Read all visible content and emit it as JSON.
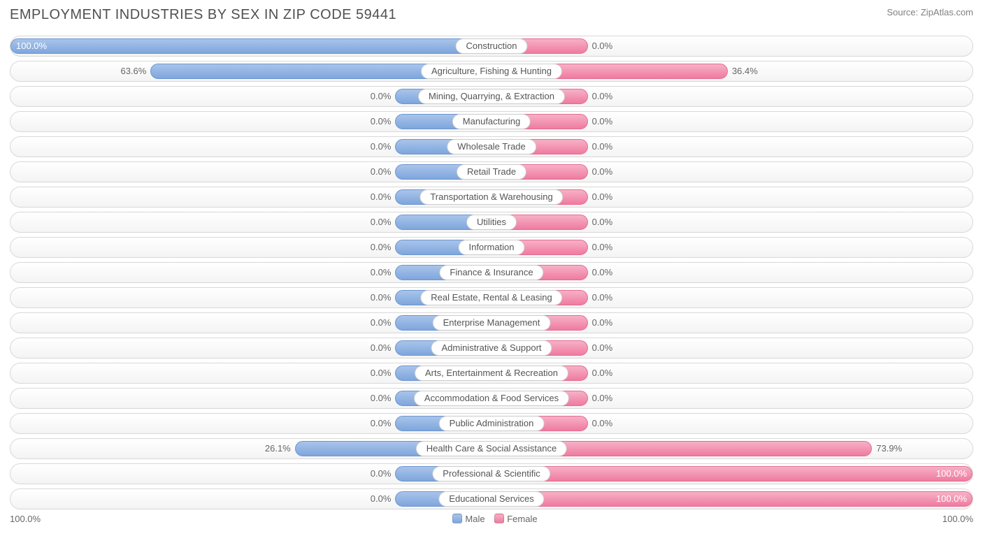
{
  "title": "EMPLOYMENT INDUSTRIES BY SEX IN ZIP CODE 59441",
  "source": "Source: ZipAtlas.com",
  "axis_left": "100.0%",
  "axis_right": "100.0%",
  "legend": {
    "male": "Male",
    "female": "Female"
  },
  "colors": {
    "male_top": "#a9c4ea",
    "male_bottom": "#7ea6dd",
    "male_border": "#6b95cf",
    "female_top": "#f7b1c6",
    "female_bottom": "#ef7ba0",
    "female_border": "#e46b91",
    "row_border": "#d8d8d8",
    "text": "#666666",
    "title": "#505050",
    "min_bar_pct": 20
  },
  "chart": {
    "type": "diverging-bar",
    "rows": [
      {
        "label": "Construction",
        "male": 100.0,
        "female": 0.0
      },
      {
        "label": "Agriculture, Fishing & Hunting",
        "male": 63.6,
        "female": 36.4
      },
      {
        "label": "Mining, Quarrying, & Extraction",
        "male": 0.0,
        "female": 0.0
      },
      {
        "label": "Manufacturing",
        "male": 0.0,
        "female": 0.0
      },
      {
        "label": "Wholesale Trade",
        "male": 0.0,
        "female": 0.0
      },
      {
        "label": "Retail Trade",
        "male": 0.0,
        "female": 0.0
      },
      {
        "label": "Transportation & Warehousing",
        "male": 0.0,
        "female": 0.0
      },
      {
        "label": "Utilities",
        "male": 0.0,
        "female": 0.0
      },
      {
        "label": "Information",
        "male": 0.0,
        "female": 0.0
      },
      {
        "label": "Finance & Insurance",
        "male": 0.0,
        "female": 0.0
      },
      {
        "label": "Real Estate, Rental & Leasing",
        "male": 0.0,
        "female": 0.0
      },
      {
        "label": "Enterprise Management",
        "male": 0.0,
        "female": 0.0
      },
      {
        "label": "Administrative & Support",
        "male": 0.0,
        "female": 0.0
      },
      {
        "label": "Arts, Entertainment & Recreation",
        "male": 0.0,
        "female": 0.0
      },
      {
        "label": "Accommodation & Food Services",
        "male": 0.0,
        "female": 0.0
      },
      {
        "label": "Public Administration",
        "male": 0.0,
        "female": 0.0
      },
      {
        "label": "Health Care & Social Assistance",
        "male": 26.1,
        "female": 73.9
      },
      {
        "label": "Professional & Scientific",
        "male": 0.0,
        "female": 100.0
      },
      {
        "label": "Educational Services",
        "male": 0.0,
        "female": 100.0
      }
    ]
  }
}
